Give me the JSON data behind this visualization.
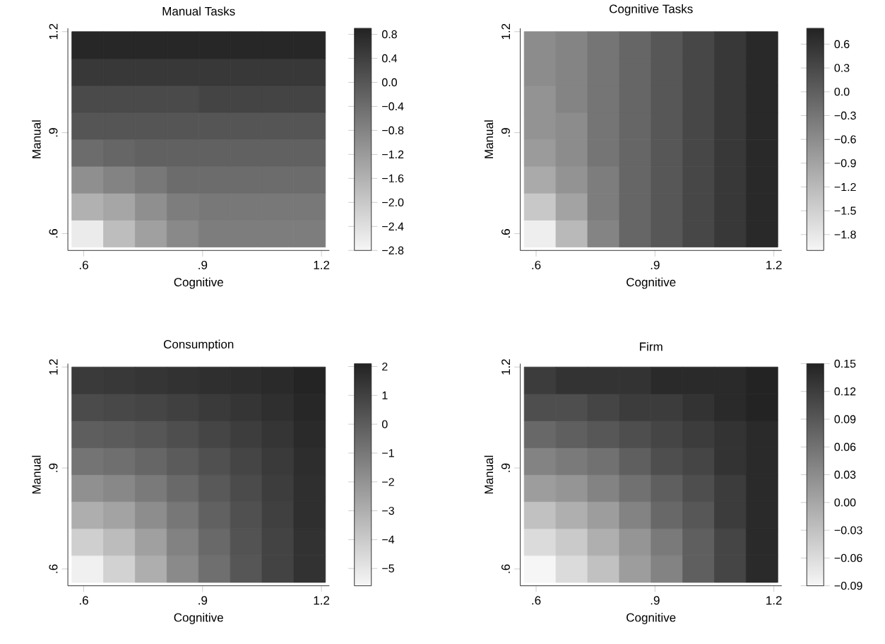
{
  "chart_data": [
    {
      "type": "heatmap",
      "title": "Manual Tasks",
      "xlabel": "Cognitive",
      "ylabel": "Manual",
      "x": [
        0.61,
        0.69,
        0.77,
        0.85,
        0.93,
        1.01,
        1.09,
        1.17
      ],
      "y": [
        1.16,
        1.08,
        1.0,
        0.92,
        0.84,
        0.76,
        0.68,
        0.6
      ],
      "xlim": [
        0.56,
        1.22
      ],
      "ylim": [
        0.55,
        1.21
      ],
      "xticks": [
        {
          "value": 0.6,
          "label": ".6"
        },
        {
          "value": 0.9,
          "label": ".9"
        },
        {
          "value": 1.2,
          "label": "1.2"
        }
      ],
      "yticks": [
        {
          "value": 0.6,
          "label": ".6"
        },
        {
          "value": 0.9,
          "label": ".9"
        },
        {
          "value": 1.2,
          "label": "1.2"
        }
      ],
      "clim": [
        -2.8,
        0.9
      ],
      "cticks": [
        {
          "value": 0.8,
          "label": "0.8"
        },
        {
          "value": 0.4,
          "label": "0.4"
        },
        {
          "value": 0,
          "label": "0.0"
        },
        {
          "value": -0.4,
          "label": "−0.4"
        },
        {
          "value": -0.8,
          "label": "−0.8"
        },
        {
          "value": -1.2,
          "label": "−1.2"
        },
        {
          "value": -1.6,
          "label": "−1.6"
        },
        {
          "value": -2.0,
          "label": "−2.0"
        },
        {
          "value": -2.4,
          "label": "−2.4"
        },
        {
          "value": -2.8,
          "label": "−2.8"
        }
      ],
      "cells": [
        [
          0.8,
          0.8,
          0.8,
          0.8,
          0.8,
          0.8,
          0.8,
          0.8
        ],
        [
          0.5,
          0.5,
          0.5,
          0.5,
          0.5,
          0.5,
          0.5,
          0.5
        ],
        [
          0.2,
          0.2,
          0.2,
          0.2,
          0.3,
          0.3,
          0.3,
          0.3
        ],
        [
          0.0,
          0.0,
          0.0,
          0.0,
          0.0,
          0.0,
          0.0,
          0.0
        ],
        [
          -0.4,
          -0.3,
          -0.2,
          -0.2,
          -0.2,
          -0.2,
          -0.2,
          -0.2
        ],
        [
          -1.0,
          -0.8,
          -0.6,
          -0.4,
          -0.4,
          -0.4,
          -0.4,
          -0.4
        ],
        [
          -1.6,
          -1.4,
          -1.0,
          -0.7,
          -0.6,
          -0.6,
          -0.6,
          -0.6
        ],
        [
          -2.6,
          -1.8,
          -1.3,
          -0.9,
          -0.7,
          -0.7,
          -0.7,
          -0.7
        ]
      ]
    },
    {
      "type": "heatmap",
      "title": "Cognitive Tasks",
      "xlabel": "Cognitive",
      "ylabel": "Manual",
      "x": [
        0.61,
        0.69,
        0.77,
        0.85,
        0.93,
        1.01,
        1.09,
        1.17
      ],
      "y": [
        1.16,
        1.08,
        1.0,
        0.92,
        0.84,
        0.76,
        0.68,
        0.6
      ],
      "xlim": [
        0.56,
        1.22
      ],
      "ylim": [
        0.55,
        1.21
      ],
      "xticks": [
        {
          "value": 0.6,
          "label": ".6"
        },
        {
          "value": 0.9,
          "label": ".9"
        },
        {
          "value": 1.2,
          "label": "1.2"
        }
      ],
      "yticks": [
        {
          "value": 0.6,
          "label": ".6"
        },
        {
          "value": 0.9,
          "label": ".9"
        },
        {
          "value": 1.2,
          "label": "1.2"
        }
      ],
      "clim": [
        -2.0,
        0.8
      ],
      "cticks": [
        {
          "value": 0.6,
          "label": "0.6"
        },
        {
          "value": 0.3,
          "label": "0.3"
        },
        {
          "value": 0,
          "label": "0.0"
        },
        {
          "value": -0.3,
          "label": "−0.3"
        },
        {
          "value": -0.6,
          "label": "−0.6"
        },
        {
          "value": -0.9,
          "label": "−0.9"
        },
        {
          "value": -1.2,
          "label": "−1.2"
        },
        {
          "value": -1.5,
          "label": "−1.5"
        },
        {
          "value": -1.8,
          "label": "−1.8"
        }
      ],
      "cells": [
        [
          -0.6,
          -0.5,
          -0.3,
          -0.1,
          0.1,
          0.3,
          0.5,
          0.7
        ],
        [
          -0.6,
          -0.5,
          -0.3,
          -0.1,
          0.1,
          0.3,
          0.5,
          0.7
        ],
        [
          -0.7,
          -0.5,
          -0.3,
          -0.1,
          0.1,
          0.3,
          0.5,
          0.7
        ],
        [
          -0.7,
          -0.6,
          -0.3,
          -0.1,
          0.1,
          0.3,
          0.5,
          0.7
        ],
        [
          -0.8,
          -0.6,
          -0.3,
          -0.1,
          0.1,
          0.3,
          0.5,
          0.7
        ],
        [
          -1.0,
          -0.7,
          -0.4,
          -0.1,
          0.1,
          0.3,
          0.5,
          0.7
        ],
        [
          -1.4,
          -0.9,
          -0.4,
          -0.1,
          0.1,
          0.3,
          0.5,
          0.7
        ],
        [
          -1.9,
          -1.2,
          -0.5,
          -0.1,
          0.1,
          0.3,
          0.5,
          0.7
        ]
      ]
    },
    {
      "type": "heatmap",
      "title": "Consumption",
      "xlabel": "Cognitive",
      "ylabel": "Manual",
      "x": [
        0.61,
        0.69,
        0.77,
        0.85,
        0.93,
        1.01,
        1.09,
        1.17
      ],
      "y": [
        1.16,
        1.08,
        1.0,
        0.92,
        0.84,
        0.76,
        0.68,
        0.6
      ],
      "xlim": [
        0.56,
        1.22
      ],
      "ylim": [
        0.55,
        1.21
      ],
      "xticks": [
        {
          "value": 0.6,
          "label": ".6"
        },
        {
          "value": 0.9,
          "label": ".9"
        },
        {
          "value": 1.2,
          "label": "1.2"
        }
      ],
      "yticks": [
        {
          "value": 0.6,
          "label": ".6"
        },
        {
          "value": 0.9,
          "label": ".9"
        },
        {
          "value": 1.2,
          "label": "1.2"
        }
      ],
      "clim": [
        -5.6,
        2.1
      ],
      "cticks": [
        {
          "value": 2,
          "label": "2"
        },
        {
          "value": 1,
          "label": "1"
        },
        {
          "value": 0,
          "label": "0"
        },
        {
          "value": -1,
          "label": "−1"
        },
        {
          "value": -2,
          "label": "−2"
        },
        {
          "value": -3,
          "label": "−3"
        },
        {
          "value": -4,
          "label": "−4"
        },
        {
          "value": -5,
          "label": "−5"
        }
      ],
      "cells": [
        [
          1.2,
          1.3,
          1.4,
          1.5,
          1.6,
          1.7,
          1.8,
          2.0
        ],
        [
          0.6,
          0.7,
          0.8,
          1.0,
          1.2,
          1.4,
          1.6,
          1.9
        ],
        [
          -0.1,
          0.0,
          0.2,
          0.5,
          0.8,
          1.1,
          1.4,
          1.8
        ],
        [
          -0.9,
          -0.7,
          -0.4,
          0.0,
          0.4,
          0.8,
          1.2,
          1.7
        ],
        [
          -1.9,
          -1.6,
          -1.1,
          -0.5,
          0.1,
          0.6,
          1.1,
          1.6
        ],
        [
          -3.0,
          -2.6,
          -1.8,
          -1.0,
          -0.2,
          0.4,
          1.0,
          1.6
        ],
        [
          -4.2,
          -3.5,
          -2.5,
          -1.4,
          -0.5,
          0.3,
          0.9,
          1.5
        ],
        [
          -5.4,
          -4.3,
          -3.0,
          -1.7,
          -0.7,
          0.2,
          0.9,
          1.5
        ]
      ]
    },
    {
      "type": "heatmap",
      "title": "Firm",
      "xlabel": "Cognitive",
      "ylabel": "Manual",
      "x": [
        0.61,
        0.69,
        0.77,
        0.85,
        0.93,
        1.01,
        1.09,
        1.17
      ],
      "y": [
        1.16,
        1.08,
        1.0,
        0.92,
        0.84,
        0.76,
        0.68,
        0.6
      ],
      "xlim": [
        0.56,
        1.22
      ],
      "ylim": [
        0.55,
        1.21
      ],
      "xticks": [
        {
          "value": 0.6,
          "label": ".6"
        },
        {
          "value": 0.9,
          "label": ".9"
        },
        {
          "value": 1.2,
          "label": "1.2"
        }
      ],
      "yticks": [
        {
          "value": 0.6,
          "label": ".6"
        },
        {
          "value": 0.9,
          "label": ".9"
        },
        {
          "value": 1.2,
          "label": "1.2"
        }
      ],
      "clim": [
        -0.09,
        0.15
      ],
      "cticks": [
        {
          "value": 0.15,
          "label": "0.15"
        },
        {
          "value": 0.12,
          "label": "0.12"
        },
        {
          "value": 0.09,
          "label": "0.09"
        },
        {
          "value": 0.06,
          "label": "0.06"
        },
        {
          "value": 0.03,
          "label": "0.03"
        },
        {
          "value": 0,
          "label": "0.00"
        },
        {
          "value": -0.03,
          "label": "−0.03"
        },
        {
          "value": -0.06,
          "label": "−0.06"
        },
        {
          "value": -0.09,
          "label": "−0.09"
        }
      ],
      "cells": [
        [
          0.12,
          0.13,
          0.13,
          0.13,
          0.14,
          0.14,
          0.14,
          0.15
        ],
        [
          0.1,
          0.1,
          0.11,
          0.12,
          0.12,
          0.13,
          0.14,
          0.15
        ],
        [
          0.07,
          0.08,
          0.09,
          0.1,
          0.11,
          0.12,
          0.13,
          0.14
        ],
        [
          0.04,
          0.05,
          0.06,
          0.08,
          0.1,
          0.11,
          0.13,
          0.14
        ],
        [
          0.01,
          0.02,
          0.04,
          0.06,
          0.08,
          0.1,
          0.12,
          0.14
        ],
        [
          -0.03,
          -0.01,
          0.01,
          0.04,
          0.07,
          0.09,
          0.12,
          0.14
        ],
        [
          -0.06,
          -0.04,
          -0.01,
          0.02,
          0.05,
          0.08,
          0.11,
          0.14
        ],
        [
          -0.09,
          -0.06,
          -0.03,
          0.01,
          0.04,
          0.08,
          0.11,
          0.14
        ]
      ]
    }
  ]
}
